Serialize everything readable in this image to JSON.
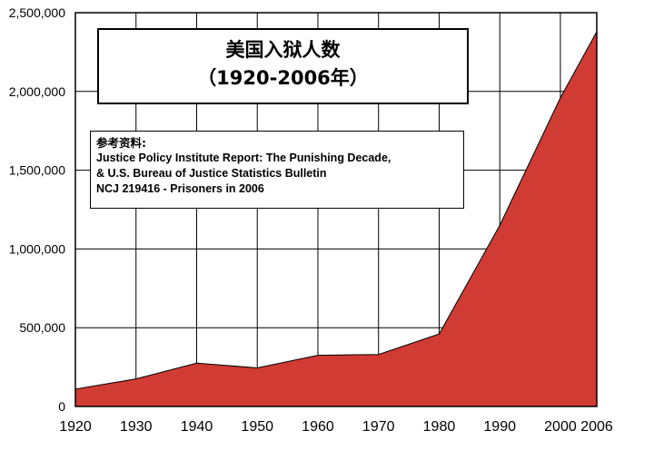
{
  "chart_data": {
    "type": "area",
    "title_line1": "美国入狱人数",
    "title_line2": "（1920-2006年）",
    "x": [
      1920,
      1930,
      1940,
      1950,
      1960,
      1970,
      1980,
      1990,
      2000,
      2006
    ],
    "series": [
      {
        "values": [
          110000,
          175000,
          275000,
          245000,
          325000,
          330000,
          460000,
          1150000,
          1960000,
          2380000
        ]
      }
    ],
    "xlim": [
      1920,
      2006
    ],
    "ylim": [
      0,
      2500000
    ],
    "y_ticks": [
      "0",
      "500,000",
      "1,000,000",
      "1,500,000",
      "2,000,000",
      "2,500,000"
    ],
    "x_ticks": [
      "1920",
      "1930",
      "1940",
      "1950",
      "1960",
      "1970",
      "1980",
      "1990",
      "2000",
      "2006"
    ],
    "grid": true,
    "fill_color": "#d03b33",
    "legend": "none"
  },
  "reference": {
    "heading": "参考资料:",
    "lines": [
      "Justice Policy Institute Report: The Punishing Decade,",
      "& U.S. Bureau of Justice Statistics Bulletin",
      "NCJ 219416 - Prisoners in 2006"
    ]
  }
}
